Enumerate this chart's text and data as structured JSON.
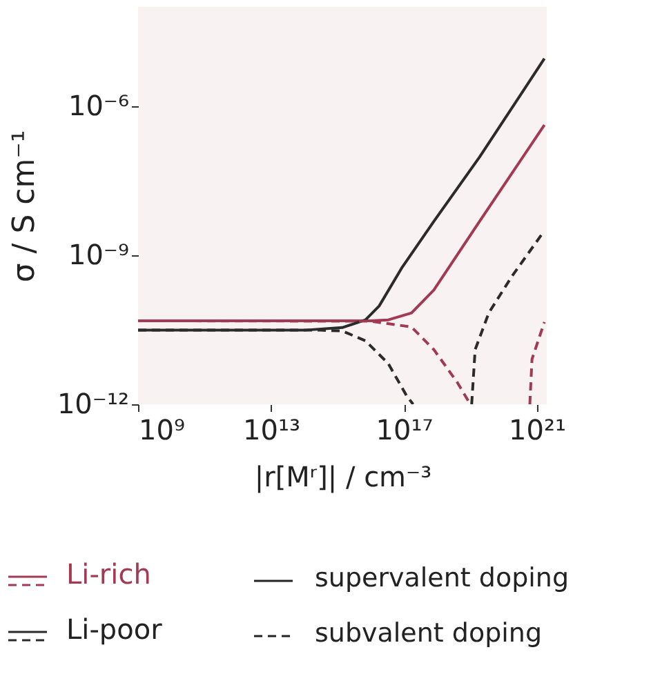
{
  "chart_data": {
    "type": "line",
    "xlabel": "|r[Mʳ]| / cm⁻³",
    "ylabel": "σ / S cm⁻¹",
    "log": "xy",
    "grid": false,
    "legend": "bottom",
    "xlim": [
      1000000000.0,
      2e+21
    ],
    "xticks": [
      {
        "value": 1000000000.0,
        "label": "10⁹"
      },
      {
        "value": 10000000000000.0,
        "label": "10¹³"
      },
      {
        "value": 1e+17,
        "label": "10¹⁷"
      },
      {
        "value": 1e+21,
        "label": "10²¹"
      }
    ],
    "ylim": [
      1e-12,
      0.0001
    ],
    "yticks": [
      {
        "value": 1e-12,
        "label": "10⁻¹²"
      },
      {
        "value": 1e-09,
        "label": "10⁻⁹"
      },
      {
        "value": 1e-06,
        "label": "10⁻⁶"
      }
    ],
    "series": [
      {
        "name": "Li-rich",
        "color": "#a23a54",
        "line_style": "solid",
        "x": [
          1000000000.0,
          1e+16,
          3.4e+16,
          1.7e+17,
          8e+17,
          1.9e+19,
          1.7e+21
        ],
        "values": [
          4.8e-11,
          4.8e-11,
          5e-11,
          6.9e-11,
          2e-10,
          4.8e-09,
          4.2e-07
        ]
      },
      {
        "name": "Li-poor",
        "color": "#2b2b2b",
        "line_style": "solid",
        "x": [
          1000000000.0,
          100000000000000.0,
          1400000000000000.0,
          7000000000000000.0,
          1.8e+16,
          9e+16,
          8e+17,
          1.9e+19,
          1.7e+21
        ],
        "values": [
          3.1e-11,
          3.1e-11,
          3.5e-11,
          5e-11,
          9.5e-11,
          5.8e-10,
          4.8e-09,
          9.5e-08,
          9.1e-06
        ]
      },
      {
        "color": "#a23a54",
        "line_style": "dashed",
        "x": [
          1000000000.0,
          1e+16,
          1.7e+17,
          8e+17,
          4e+18,
          1e+19,
          3e+19,
          6.2e+20,
          7.2e+20,
          1.7e+21
        ],
        "values": [
          4.8e-11,
          4.7e-11,
          3.6e-11,
          1.26e-11,
          2.8e-12,
          1e-12,
          null,
          1e-12,
          8.1e-12,
          4.5e-11
        ]
      },
      {
        "color": "#2b2b2b",
        "line_style": "dashed",
        "x": [
          1000000000.0,
          300000000000000.0,
          1400000000000000.0,
          7000000000000000.0,
          3.4e+16,
          1.2e+17,
          1.9e+17,
          1e+18,
          1.1e+19,
          1.4e+19,
          3.6e+19,
          1.8e+20,
          1.4e+21
        ],
        "values": [
          3.1e-11,
          3.1e-11,
          3e-11,
          1.9e-11,
          6.6e-12,
          1.5e-12,
          1e-12,
          null,
          1e-12,
          1.26e-11,
          6.9e-11,
          3.8e-10,
          2.6e-09
        ]
      }
    ],
    "annotations": [
      "supervalent doping",
      "subvalent doping"
    ]
  }
}
